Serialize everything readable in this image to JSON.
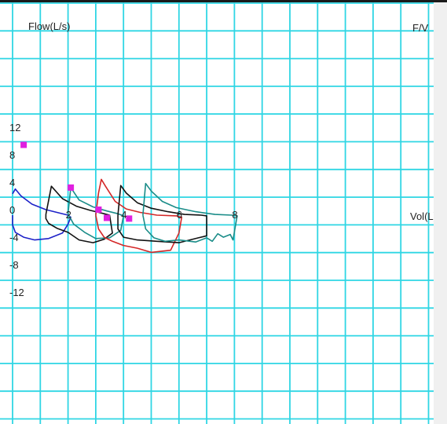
{
  "chart_data": {
    "type": "line",
    "title": "F/V",
    "xlabel": "Vol(L)",
    "ylabel": "Flow(L/s)",
    "xlim": [
      0,
      15
    ],
    "ylim": [
      -16,
      15
    ],
    "grid": true,
    "x_ticks": [
      {
        "value": 0,
        "label": "0"
      },
      {
        "value": 2,
        "label": "2"
      },
      {
        "value": 4,
        "label": "4"
      },
      {
        "value": 6,
        "label": "6"
      },
      {
        "value": 8,
        "label": "8"
      }
    ],
    "y_ticks": [
      {
        "value": 12,
        "label": "12"
      },
      {
        "value": 8,
        "label": "8"
      },
      {
        "value": 4,
        "label": "4"
      },
      {
        "value": 0,
        "label": "0"
      },
      {
        "value": -4,
        "label": "-4"
      },
      {
        "value": -8,
        "label": "-8"
      },
      {
        "value": -12,
        "label": "-12"
      }
    ],
    "series": [
      {
        "color": "#1e22c8",
        "x": [
          0,
          0.1,
          0.3,
          0.7,
          1.2,
          1.7,
          2.0,
          2.1,
          2.0,
          1.8,
          1.3,
          0.8,
          0.4,
          0.1,
          0,
          0
        ],
        "y": [
          3.1,
          3.8,
          2.8,
          1.6,
          0.8,
          0.3,
          0.0,
          -0.3,
          -1.3,
          -2.6,
          -3.4,
          -3.6,
          -3.2,
          -2.5,
          -1.4,
          0
        ]
      },
      {
        "color": "#111111",
        "x": [
          1.2,
          1.4,
          1.8,
          2.3,
          2.8,
          3.3,
          3.5,
          3.6,
          3.3,
          2.9,
          2.4,
          2.0,
          1.6,
          1.3,
          1.2,
          1.2
        ],
        "y": [
          0.1,
          4.2,
          2.4,
          1.3,
          0.7,
          0.2,
          0.0,
          -2.6,
          -3.5,
          -4.0,
          -3.6,
          -2.5,
          -1.9,
          -1.2,
          -0.5,
          0.1
        ]
      },
      {
        "color": "#1a8c88",
        "x": [
          2.0,
          2.1,
          2.4,
          2.9,
          3.4,
          3.8,
          4.0,
          3.9,
          3.5,
          3.0,
          2.6,
          2.2,
          2.0
        ],
        "y": [
          0.2,
          4.0,
          2.2,
          1.2,
          0.6,
          0.2,
          -0.1,
          -2.2,
          -3.3,
          -3.4,
          -2.5,
          -1.3,
          0.2
        ]
      },
      {
        "color": "#d42626",
        "x": [
          3.0,
          3.1,
          3.2,
          3.35,
          3.7,
          4.1,
          4.6,
          5.2,
          5.9,
          6.1,
          6.0,
          5.7,
          5.0,
          4.5,
          4.0,
          3.6,
          3.3,
          3.1,
          3.0
        ],
        "y": [
          0.0,
          3.2,
          5.2,
          4.2,
          2.0,
          0.9,
          0.4,
          0.0,
          -0.1,
          -0.3,
          -2.6,
          -5.1,
          -5.4,
          -4.8,
          -4.4,
          -3.8,
          -3.2,
          -2.0,
          0.0
        ]
      },
      {
        "color": "#111111",
        "x": [
          3.8,
          3.9,
          4.1,
          4.5,
          5.0,
          5.6,
          6.2,
          6.8,
          7.0,
          7.0,
          6.7,
          6.0,
          5.2,
          4.5,
          4.0,
          3.8,
          3.8
        ],
        "y": [
          0.0,
          4.3,
          3.2,
          1.8,
          1.0,
          0.5,
          0.1,
          0.0,
          -0.1,
          -3.0,
          -3.3,
          -4.0,
          -3.8,
          -3.6,
          -3.2,
          -2.0,
          0.0
        ]
      },
      {
        "color": "#1a8c88",
        "x": [
          4.7,
          4.8,
          5.0,
          5.4,
          5.9,
          6.6,
          7.3,
          7.9,
          8.1,
          7.95,
          7.85,
          7.6,
          7.4,
          7.2,
          7.0,
          6.6,
          6.0,
          5.5,
          5.1,
          4.8,
          4.7
        ],
        "y": [
          0.0,
          4.6,
          3.5,
          2.0,
          1.1,
          0.5,
          0.1,
          0.0,
          -0.1,
          -3.6,
          -2.8,
          -3.2,
          -2.7,
          -3.8,
          -3.3,
          -3.9,
          -3.6,
          -3.8,
          -3.3,
          -2.0,
          0.0
        ]
      }
    ],
    "markers": [
      {
        "color": "#e020e0",
        "x": [
          0.4,
          2.1,
          3.1,
          3.4,
          4.2
        ],
        "y": [
          10.2,
          4.0,
          0.8,
          -0.4,
          -0.5
        ]
      }
    ]
  }
}
